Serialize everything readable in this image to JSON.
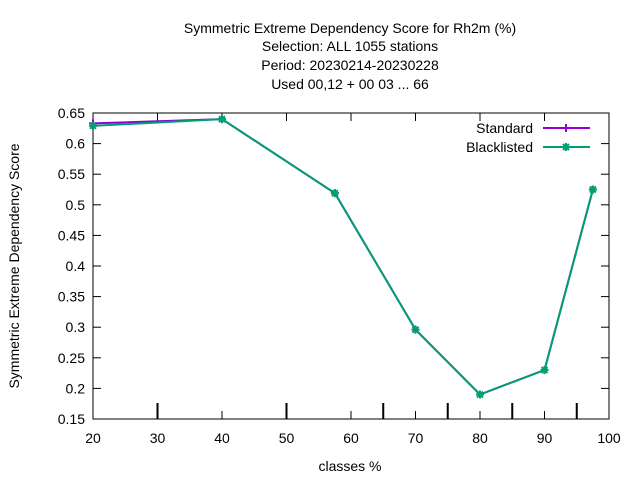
{
  "chart_data": {
    "type": "line",
    "title_lines": [
      "Symmetric Extreme Dependency Score  for Rh2m (%)",
      "Selection: ALL   1055 stations",
      "Period: 20230214-20230228",
      "Used  00,12  + 00 03 ... 66"
    ],
    "xlabel": "classes %",
    "ylabel": "Symmetric Extreme Dependency Score",
    "xlim": [
      20,
      100
    ],
    "ylim": [
      0.15,
      0.65
    ],
    "xticks": [
      20,
      30,
      40,
      50,
      60,
      70,
      80,
      90,
      100
    ],
    "xtick_labels": [
      "20",
      "30",
      "40",
      "50",
      "60",
      "70",
      "80",
      "90",
      "100"
    ],
    "yticks": [
      0.15,
      0.2,
      0.25,
      0.3,
      0.35,
      0.4,
      0.45,
      0.5,
      0.55,
      0.6,
      0.65
    ],
    "ytick_labels": [
      "0.15",
      "0.2",
      "0.25",
      "0.3",
      "0.35",
      "0.4",
      "0.45",
      "0.5",
      "0.55",
      "0.6",
      "0.65"
    ],
    "bottom_markers_x": [
      30,
      50,
      65,
      75,
      85,
      95
    ],
    "grid": false,
    "legend_position": "top-right",
    "series": [
      {
        "name": "Standard",
        "color": "#9400d3",
        "marker": "plus",
        "x": [
          20,
          40,
          57.5,
          70,
          80,
          90,
          97.5
        ],
        "y": [
          0.633,
          0.64,
          0.519,
          0.296,
          0.19,
          0.23,
          0.525
        ]
      },
      {
        "name": "Blacklisted",
        "color": "#009e73",
        "marker": "star",
        "x": [
          20,
          40,
          57.5,
          70,
          80,
          90,
          97.5
        ],
        "y": [
          0.629,
          0.64,
          0.519,
          0.296,
          0.19,
          0.23,
          0.525
        ]
      }
    ]
  }
}
